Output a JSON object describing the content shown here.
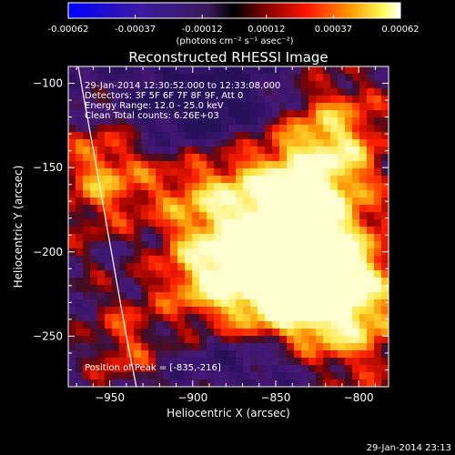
{
  "colorbar": {
    "tick_labels": [
      "-0.00062",
      "-0.00037",
      "-0.00012",
      "0.00012",
      "0.00037",
      "0.00062"
    ],
    "unit_label": "(photons cm⁻² s⁻¹ asec⁻²)",
    "range": [
      -0.00062,
      0.00062
    ]
  },
  "chart_data": {
    "type": "heatmap",
    "title": "Reconstructed RHESSI Image",
    "xlabel": "Heliocentric X (arcsec)",
    "ylabel": "Heliocentric Y (arcsec)",
    "xlim": [
      -975,
      -782
    ],
    "ylim": [
      -280,
      -90
    ],
    "x_ticks": [
      -950,
      -900,
      -850,
      -800
    ],
    "y_ticks": [
      -100,
      -150,
      -200,
      -250
    ],
    "x_tick_labels": [
      "−950",
      "−900",
      "−850",
      "−800"
    ],
    "y_tick_labels": [
      "−100",
      "−150",
      "−200",
      "−250"
    ],
    "annotations": [
      "29-Jan-2014 12:30:52.000 to 12:33:08.000",
      "Detectors: 3F 5F 6F 7F 8F 9F, Att 0",
      "Energy Range: 12.0 - 25.0 keV",
      "Clean     Total counts: 6.26E+03"
    ],
    "peak_label": "Position of Peak = [-835,-216]",
    "peak_position": [
      -835,
      -216
    ],
    "limb_curve": [
      [
        -969,
        -90
      ],
      [
        -958,
        -150
      ],
      [
        -949,
        -200
      ],
      [
        -940,
        -250
      ],
      [
        -934,
        -280
      ]
    ],
    "colormap": "blue-purple-red-orange-yellow-white"
  },
  "footer": {
    "timestamp": "29-Jan-2014 23:13"
  }
}
